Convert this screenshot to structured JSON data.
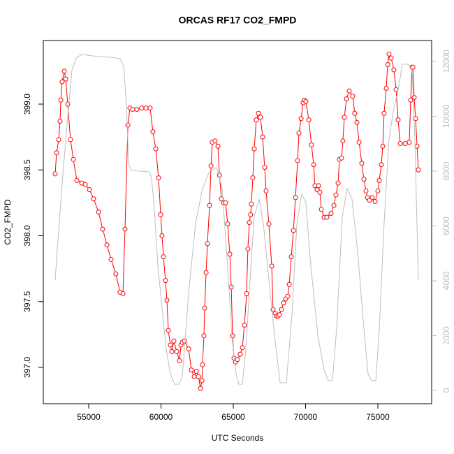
{
  "chart_data": {
    "type": "line",
    "title": "ORCAS RF17 CO2_FMPD",
    "x_label": "UTC Seconds",
    "y_label": "CO2_FMPD",
    "xlim": [
      51860,
      78720
    ],
    "xticks": [
      55000,
      60000,
      65000,
      70000,
      75000
    ],
    "ylim": [
      396.724,
      399.483
    ],
    "yticks": [
      {
        "value": 397.0,
        "label": "397.0"
      },
      397.5,
      {
        "value": 398.0,
        "label": "398.0"
      },
      398.5,
      {
        "value": 399.0,
        "label": "399.0"
      }
    ],
    "y2lim": [
      -484,
      12764
    ],
    "y2ticks": [
      0,
      2000,
      4000,
      6000,
      8000,
      10000,
      12000
    ],
    "y2_color": "#bebebe",
    "series": [
      {
        "color": "#ff0000",
        "marker": "circle",
        "x": [
          52680,
          52780,
          52920,
          53020,
          53070,
          53160,
          53310,
          53410,
          53550,
          53740,
          53940,
          54180,
          54520,
          54760,
          55050,
          55340,
          55680,
          55970,
          56260,
          56550,
          56880,
          57170,
          57370,
          57510,
          57710,
          57850,
          58040,
          58330,
          58670,
          58960,
          59250,
          59440,
          59640,
          59830,
          59980,
          60070,
          60170,
          60310,
          60410,
          60510,
          60650,
          60750,
          60890,
          61090,
          61280,
          61380,
          61470,
          61620,
          61910,
          62100,
          62300,
          62440,
          62590,
          62730,
          62830,
          62870,
          62970,
          63020,
          63120,
          63210,
          63360,
          63460,
          63550,
          63740,
          63940,
          64040,
          64180,
          64330,
          64470,
          64610,
          64760,
          64860,
          64950,
          65050,
          65150,
          65290,
          65480,
          65630,
          65770,
          65920,
          66010,
          66110,
          66200,
          66250,
          66350,
          66450,
          66590,
          66740,
          66880,
          67030,
          67170,
          67270,
          67460,
          67660,
          67750,
          67900,
          67990,
          68090,
          68190,
          68330,
          68480,
          68620,
          68770,
          68870,
          69010,
          69160,
          69300,
          69450,
          69540,
          69690,
          69830,
          69930,
          70020,
          70220,
          70410,
          70560,
          70650,
          70800,
          70900,
          70990,
          71090,
          71280,
          71470,
          71760,
          71960,
          72100,
          72250,
          72340,
          72490,
          72580,
          72680,
          72830,
          73020,
          73260,
          73400,
          73550,
          73700,
          73890,
          74030,
          74180,
          74280,
          74420,
          74610,
          74810,
          75000,
          75100,
          75240,
          75340,
          75430,
          75580,
          75680,
          75770,
          75920,
          76110,
          76260,
          76400,
          76550,
          76890,
          77170,
          77270,
          77370,
          77420,
          77510,
          77610,
          77710,
          77800
        ],
        "values": [
          398.47,
          398.63,
          398.73,
          398.87,
          399.03,
          399.17,
          399.25,
          399.19,
          399.0,
          398.73,
          398.58,
          398.42,
          398.4,
          398.39,
          398.35,
          398.28,
          398.18,
          398.05,
          397.93,
          397.82,
          397.71,
          397.57,
          397.56,
          398.05,
          398.84,
          398.97,
          398.96,
          398.96,
          398.97,
          398.97,
          398.97,
          398.79,
          398.66,
          398.44,
          398.16,
          398.0,
          397.84,
          397.66,
          397.51,
          397.28,
          397.17,
          397.12,
          397.2,
          397.12,
          397.05,
          397.17,
          397.19,
          397.2,
          397.14,
          396.98,
          396.93,
          396.97,
          396.93,
          396.84,
          396.9,
          397.02,
          397.24,
          397.45,
          397.72,
          397.94,
          398.23,
          398.53,
          398.71,
          398.72,
          398.68,
          398.46,
          398.28,
          398.25,
          398.25,
          398.09,
          397.86,
          397.61,
          397.24,
          397.07,
          397.04,
          397.06,
          397.1,
          397.15,
          397.32,
          397.56,
          397.9,
          398.1,
          398.16,
          398.24,
          398.44,
          398.66,
          398.88,
          398.93,
          398.9,
          398.75,
          398.52,
          398.34,
          398.09,
          397.77,
          397.44,
          397.41,
          397.39,
          397.39,
          397.4,
          397.44,
          397.49,
          397.52,
          397.54,
          397.63,
          397.84,
          398.04,
          398.29,
          398.57,
          398.78,
          398.89,
          399.01,
          399.03,
          399.02,
          398.88,
          398.69,
          398.54,
          398.38,
          398.35,
          398.38,
          398.33,
          398.2,
          398.14,
          398.14,
          398.17,
          398.23,
          398.31,
          398.4,
          398.58,
          398.59,
          398.72,
          398.9,
          399.04,
          399.1,
          399.06,
          398.93,
          398.86,
          398.71,
          398.55,
          398.43,
          398.34,
          398.29,
          398.27,
          398.29,
          398.26,
          398.34,
          398.42,
          398.54,
          398.68,
          398.93,
          399.12,
          399.3,
          399.38,
          399.35,
          399.26,
          399.11,
          398.88,
          398.7,
          398.7,
          398.71,
          399.03,
          399.28,
          399.28,
          399.05,
          398.89,
          398.68,
          398.5
        ]
      },
      {
        "color": "#bebebe",
        "axis": "y2",
        "x": [
          52680,
          52920,
          53210,
          53500,
          53840,
          54180,
          54520,
          54900,
          55630,
          56590,
          57170,
          57420,
          57610,
          57760,
          57950,
          58530,
          59200,
          59350,
          59540,
          59780,
          60070,
          60360,
          60650,
          60940,
          61230,
          61470,
          61910,
          62390,
          62870,
          63360,
          63840,
          64230,
          64570,
          64900,
          65190,
          65390,
          65630,
          65870,
          66160,
          66450,
          66790,
          67080,
          67460,
          67850,
          68240,
          68670,
          69060,
          69400,
          69730,
          70020,
          70360,
          70850,
          71280,
          71570,
          71860,
          72150,
          72540,
          72880,
          73210,
          73600,
          73990,
          74320,
          74570,
          74860,
          75100,
          75430,
          75770,
          76060,
          76400,
          76690,
          77080,
          77370,
          77560,
          77800
        ],
        "values": [
          4025,
          5830,
          7870,
          9660,
          11690,
          12150,
          12250,
          12230,
          12180,
          12150,
          12100,
          11820,
          10420,
          8230,
          8030,
          8000,
          7970,
          7750,
          6600,
          4560,
          3030,
          1500,
          610,
          230,
          230,
          480,
          3540,
          6090,
          7360,
          8000,
          8130,
          7360,
          4820,
          2010,
          610,
          230,
          230,
          1500,
          4050,
          6340,
          6980,
          6090,
          4050,
          2010,
          280,
          280,
          2780,
          6090,
          7160,
          6850,
          4560,
          2010,
          740,
          360,
          360,
          2270,
          6340,
          7360,
          6980,
          5070,
          2520,
          610,
          360,
          360,
          2270,
          6090,
          9150,
          10170,
          10930,
          11900,
          11900,
          11690,
          9150,
          4025
        ]
      }
    ]
  }
}
